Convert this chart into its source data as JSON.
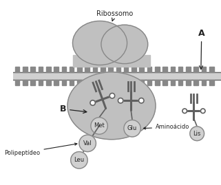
{
  "background_color": "#ffffff",
  "ribosome_fill": "#c0c0c0",
  "ribosome_edge": "#888888",
  "mrna_fill": "#d0d0d0",
  "mrna_edge": "#666666",
  "tooth_fill": "#888888",
  "trna_color": "#606060",
  "amino_fill": "#d0d0d0",
  "amino_edge": "#888888",
  "poly_fill": "#d0d0d0",
  "poly_edge": "#888888",
  "text_color": "#222222",
  "label_ribosome": "Ribossomo",
  "label_a": "A",
  "label_b": "B",
  "label_met": "Met",
  "label_val": "Val",
  "label_leu": "Leu",
  "label_glu": "Glu",
  "label_lis": "Lis",
  "label_aminoacido": "Aminoácido",
  "label_polipeptideo": "Polipeptídeo"
}
